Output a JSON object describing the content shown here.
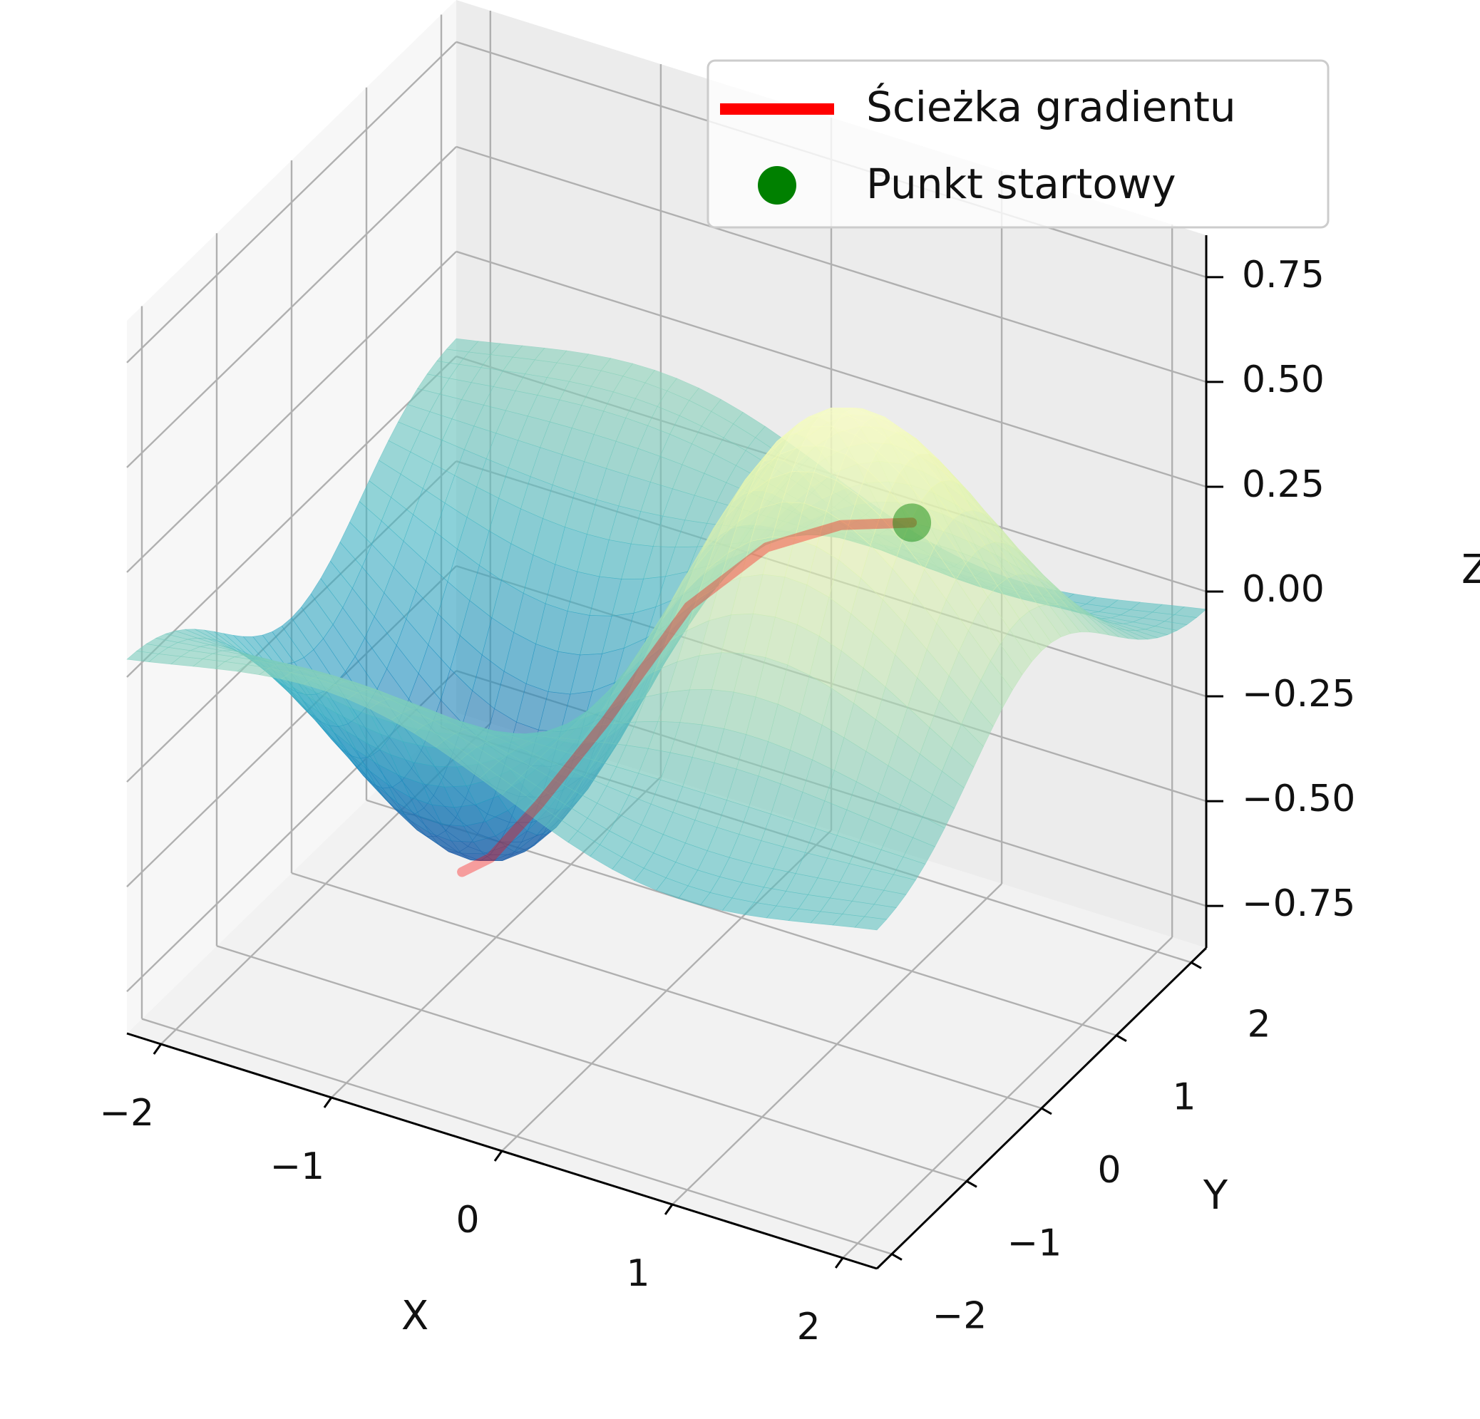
{
  "chart_data": {
    "type": "surface3d",
    "title": "",
    "xlabel": "X",
    "ylabel": "Y",
    "zlabel": "Z",
    "xlim": [
      -2.2,
      2.2
    ],
    "ylim": [
      -2.2,
      2.2
    ],
    "zlim": [
      -0.85,
      0.85
    ],
    "x_ticks": [
      -2,
      -1,
      0,
      1,
      2
    ],
    "x_tick_labels": [
      "−2",
      "−1",
      "0",
      "1",
      "2"
    ],
    "y_ticks": [
      -2,
      -1,
      0,
      1,
      2
    ],
    "y_tick_labels": [
      "−2",
      "−1",
      "0",
      "1",
      "2"
    ],
    "z_ticks": [
      -0.75,
      -0.5,
      -0.25,
      0,
      0.25,
      0.5,
      0.75
    ],
    "z_tick_labels": [
      "−0.75",
      "−0.50",
      "−0.25",
      "0.00",
      "0.25",
      "0.50",
      "0.75"
    ],
    "surface": {
      "function": "sin(x)·cos(y)·exp(−(x²+y²)/4)",
      "x_range": [
        -2.2,
        2.2
      ],
      "y_range": [
        -2.2,
        2.2
      ],
      "z_range": [
        -0.74,
        0.74
      ],
      "colormap": "YlGnBu",
      "alpha": 0.6
    },
    "gradient_path": {
      "x": [
        1.0,
        0.6,
        0.2,
        -0.2,
        -0.6,
        -0.9,
        -1.1,
        -1.2
      ],
      "y": [
        1.0,
        0.96,
        0.88,
        0.75,
        0.55,
        0.35,
        0.15,
        0.0
      ],
      "z": [
        0.22,
        0.17,
        0.08,
        -0.09,
        -0.38,
        -0.58,
        -0.7,
        -0.72
      ]
    },
    "start_point": {
      "x": 1.0,
      "y": 1.0,
      "z": 0.22
    },
    "legend": {
      "position": "upper right",
      "entries": [
        {
          "label": "Ścieżka gradientu",
          "marker": "line",
          "color": "#ff0000"
        },
        {
          "label": "Punkt startowy",
          "marker": "circle",
          "color": "#008000"
        }
      ]
    },
    "grid": true
  }
}
